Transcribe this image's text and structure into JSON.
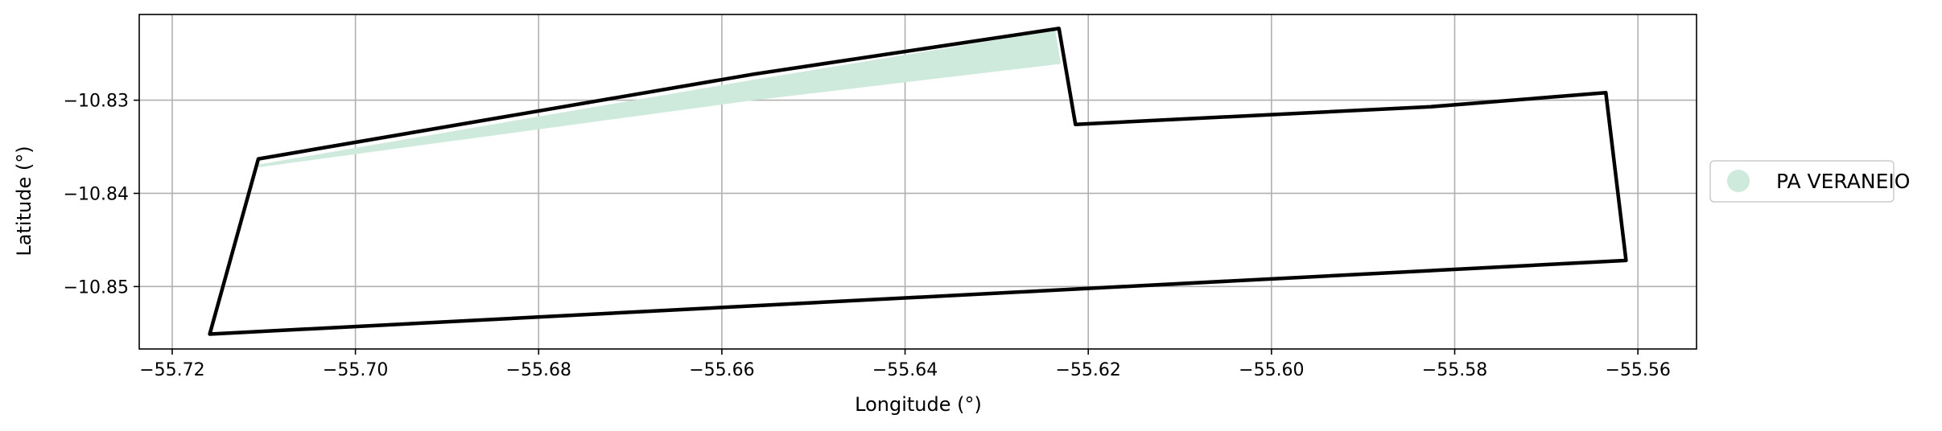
{
  "chart_data": {
    "type": "map",
    "xlabel": "Longitude (°)",
    "ylabel": "Latitude (°)",
    "xlim": [
      -55.7236,
      -55.5536
    ],
    "ylim": [
      -10.8567,
      -10.8208
    ],
    "x_ticks": [
      -55.72,
      -55.7,
      -55.68,
      -55.66,
      -55.64,
      -55.62,
      -55.6,
      -55.58,
      -55.56
    ],
    "x_tick_labels": [
      "−55.72",
      "−55.70",
      "−55.68",
      "−55.66",
      "−55.64",
      "−55.62",
      "−55.60",
      "−55.58",
      "−55.56"
    ],
    "y_ticks": [
      -10.83,
      -10.84,
      -10.85
    ],
    "y_tick_labels": [
      "−10.83",
      "−10.84",
      "−10.85"
    ],
    "grid": true,
    "legend": {
      "placement": "center-right-outside",
      "entries": [
        {
          "label": "PA VERANEIO",
          "color": "#cdeadc"
        }
      ]
    },
    "boundary": {
      "color": "#000000",
      "points": [
        [
          -55.7159,
          -10.8551
        ],
        [
          -55.7106,
          -10.8363
        ],
        [
          -55.6565,
          -10.8272
        ],
        [
          -55.6232,
          -10.8223
        ],
        [
          -55.6214,
          -10.8326
        ],
        [
          -55.5826,
          -10.8307
        ],
        [
          -55.5635,
          -10.8292
        ],
        [
          -55.5613,
          -10.8472
        ],
        [
          -55.7159,
          -10.8551
        ]
      ]
    },
    "filled_area": {
      "name": "PA VERANEIO",
      "color": "#cdeadc",
      "points": [
        [
          -55.7106,
          -10.8369
        ],
        [
          -55.6565,
          -10.8278
        ],
        [
          -55.6236,
          -10.8225
        ],
        [
          -55.623,
          -10.8261
        ],
        [
          -55.6565,
          -10.83
        ],
        [
          -55.7106,
          -10.8372
        ]
      ]
    }
  }
}
